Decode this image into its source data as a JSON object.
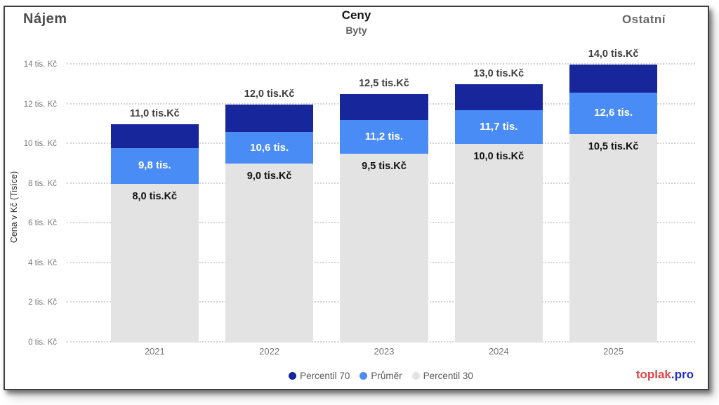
{
  "header": {
    "left_title": "Nájem",
    "right_title": "Ostatní"
  },
  "chart_data": {
    "type": "bar",
    "subtype": "overlapped-percentile-bars",
    "title": "Ceny",
    "subtitle": "Byty",
    "categories": [
      "2021",
      "2022",
      "2023",
      "2024",
      "2025"
    ],
    "series": [
      {
        "name": "Percentil 70",
        "color": "#18269C",
        "values": [
          11.0,
          12.0,
          12.5,
          13.0,
          14.0
        ],
        "labels": [
          "11,0 tis.Kč",
          "12,0 tis.Kč",
          "12,5 tis.Kč",
          "13,0 tis.Kč",
          "14,0 tis.Kč"
        ]
      },
      {
        "name": "Průměr",
        "color": "#4A8CF5",
        "values": [
          9.8,
          10.6,
          11.2,
          11.7,
          12.6
        ],
        "labels": [
          "9,8 tis.",
          "10,6 tis.",
          "11,2 tis.",
          "11,7 tis.",
          "12,6 tis."
        ]
      },
      {
        "name": "Percentil 30",
        "color": "#E3E3E3",
        "values": [
          8.0,
          9.0,
          9.5,
          10.0,
          10.5
        ],
        "labels": [
          "8,0 tis.Kč",
          "9,0 tis.Kč",
          "9,5 tis.Kč",
          "10,0 tis.Kč",
          "10,5 tis.Kč"
        ]
      }
    ],
    "ylabel": "Cena v Kč (Tisíce)",
    "xlabel": "",
    "ylim": [
      0,
      14
    ],
    "y_tick_values": [
      0,
      2,
      4,
      6,
      8,
      10,
      12,
      14
    ],
    "y_ticks": [
      "0 tis. Kč",
      "2 tis. Kč",
      "4 tis. Kč",
      "6 tis. Kč",
      "8 tis. Kč",
      "10 tis. Kč",
      "12 tis. Kč",
      "14 tis. Kč"
    ],
    "grid": "horizontal-dotted",
    "legend_position": "bottom-center"
  },
  "footer": {
    "brand_primary": "toplak",
    "brand_suffix": ".pro",
    "brand_colors": {
      "primary": "#E04747",
      "suffix": "#2430CC"
    }
  }
}
